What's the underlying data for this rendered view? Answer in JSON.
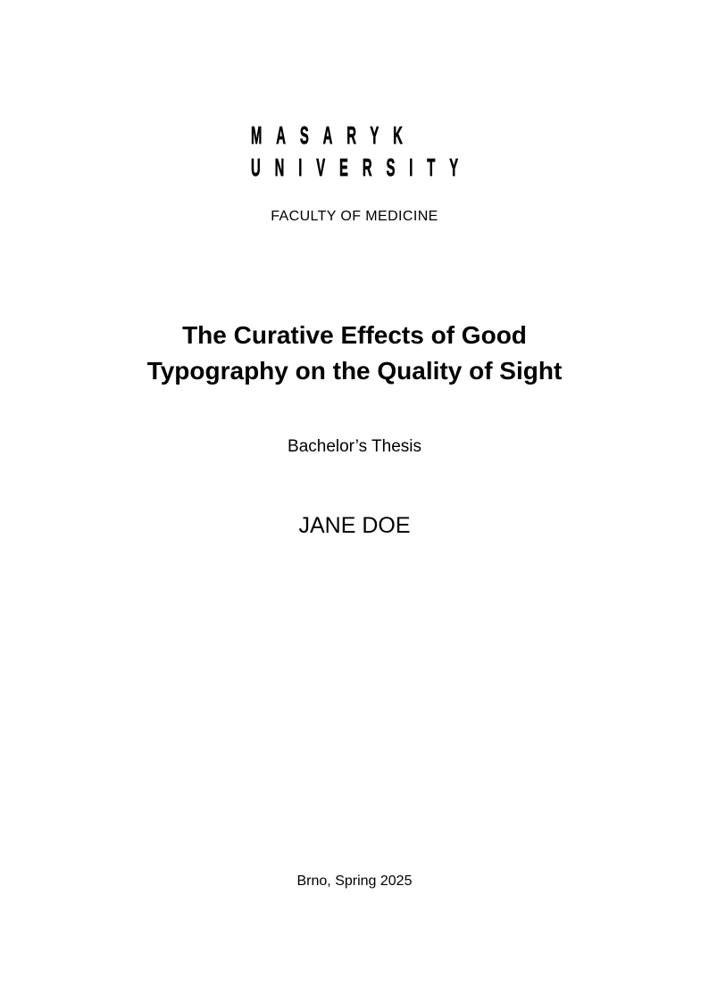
{
  "page": {
    "background_color": "#ffffff",
    "text_color": "#000000"
  },
  "logo": {
    "line1": "MASARYK",
    "line2": "UNIVERSITY"
  },
  "faculty": "FACULTY OF MEDICINE",
  "title": {
    "lines": [
      "The Curative Effects of Good",
      "Typography on the Quality of Sight"
    ]
  },
  "thesis_type": "Bachelor’s Thesis",
  "author": "JANE DOE",
  "place_date": "Brno, Spring 2025"
}
